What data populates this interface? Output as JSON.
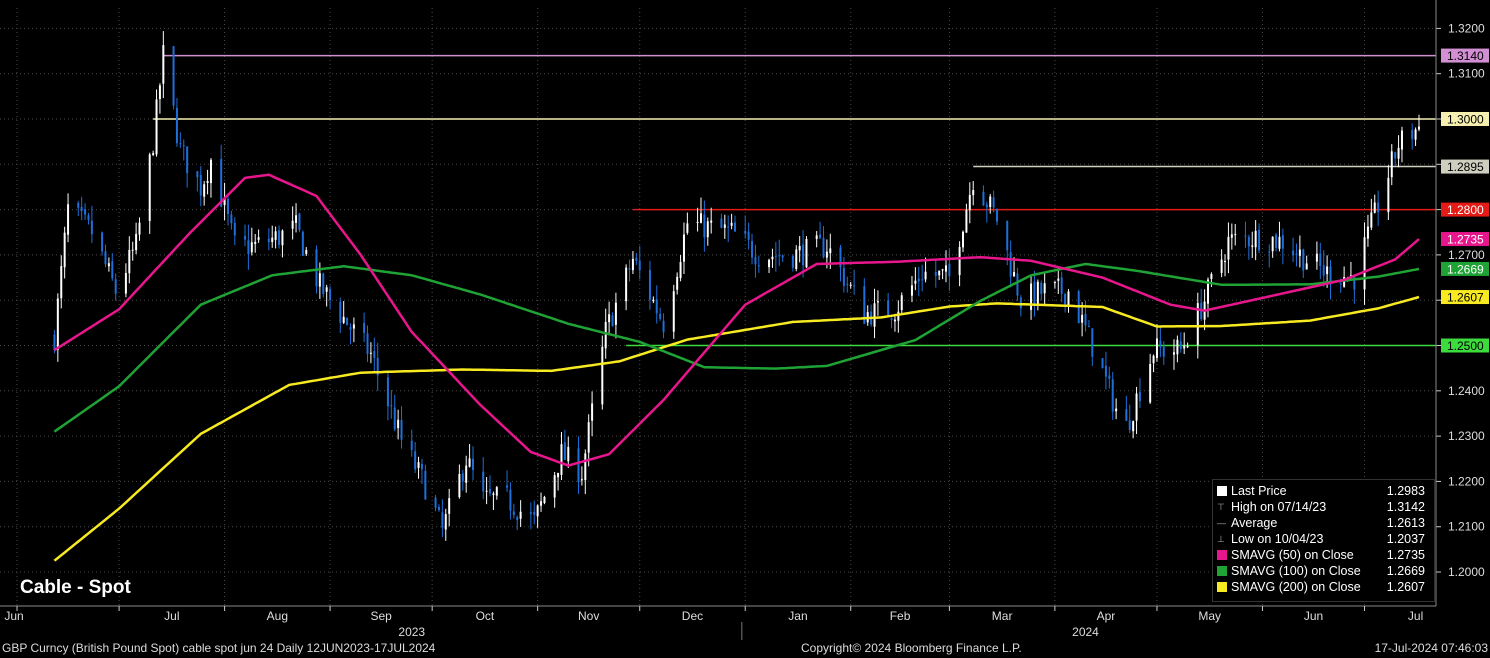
{
  "chart_data": {
    "type": "candlestick",
    "title": "Cable - Spot",
    "y_ticks": [
      "1.2000",
      "1.2100",
      "1.2200",
      "1.2300",
      "1.2400",
      "1.2500",
      "1.2600",
      "1.2700",
      "1.2800",
      "1.2900",
      "1.3000",
      "1.3100",
      "1.3200"
    ],
    "ylim": [
      1.1925,
      1.3245
    ],
    "x_month_labels": [
      {
        "label": "Jun",
        "date": "2023-06-01"
      },
      {
        "label": "Jul",
        "date": "2023-07-01"
      },
      {
        "label": "Aug",
        "date": "2023-08-01"
      },
      {
        "label": "Sep",
        "date": "2023-09-01"
      },
      {
        "label": "Oct",
        "date": "2023-10-01"
      },
      {
        "label": "Nov",
        "date": "2023-11-01"
      },
      {
        "label": "Dec",
        "date": "2023-12-01"
      },
      {
        "label": "Jan",
        "date": "2024-01-01"
      },
      {
        "label": "Feb",
        "date": "2024-02-01"
      },
      {
        "label": "Mar",
        "date": "2024-03-01"
      },
      {
        "label": "Apr",
        "date": "2024-04-01"
      },
      {
        "label": "May",
        "date": "2024-05-01"
      },
      {
        "label": "Jun",
        "date": "2024-06-01"
      },
      {
        "label": "Jul",
        "date": "2024-07-01"
      }
    ],
    "x_year_labels": [
      {
        "label": "2023",
        "date": "2023-09-25"
      },
      {
        "label": "2024",
        "date": "2024-04-10"
      }
    ],
    "x_range": [
      "2023-05-27",
      "2024-07-22"
    ],
    "year_divider_date": "2023-12-31",
    "price_anchors": [
      [
        "2023-06-12",
        1.252
      ],
      [
        "2023-06-16",
        1.28
      ],
      [
        "2023-06-23",
        1.275
      ],
      [
        "2023-06-30",
        1.262
      ],
      [
        "2023-07-06",
        1.272
      ],
      [
        "2023-07-11",
        1.295
      ],
      [
        "2023-07-14",
        1.314
      ],
      [
        "2023-07-19",
        1.293
      ],
      [
        "2023-07-25",
        1.285
      ],
      [
        "2023-07-28",
        1.291
      ],
      [
        "2023-08-04",
        1.272
      ],
      [
        "2023-08-10",
        1.272
      ],
      [
        "2023-08-17",
        1.274
      ],
      [
        "2023-08-22",
        1.276
      ],
      [
        "2023-08-29",
        1.263
      ],
      [
        "2023-09-05",
        1.256
      ],
      [
        "2023-09-13",
        1.248
      ],
      [
        "2023-09-22",
        1.229
      ],
      [
        "2023-09-29",
        1.219
      ],
      [
        "2023-10-04",
        1.209
      ],
      [
        "2023-10-11",
        1.225
      ],
      [
        "2023-10-16",
        1.216
      ],
      [
        "2023-10-23",
        1.216
      ],
      [
        "2023-10-31",
        1.211
      ],
      [
        "2023-11-08",
        1.226
      ],
      [
        "2023-11-14",
        1.222
      ],
      [
        "2023-11-21",
        1.253
      ],
      [
        "2023-11-29",
        1.269
      ],
      [
        "2023-12-08",
        1.255
      ],
      [
        "2023-12-15",
        1.277
      ],
      [
        "2023-12-28",
        1.275
      ],
      [
        "2024-01-05",
        1.27
      ],
      [
        "2024-01-15",
        1.27
      ],
      [
        "2024-01-25",
        1.272
      ],
      [
        "2024-02-05",
        1.257
      ],
      [
        "2024-02-14",
        1.258
      ],
      [
        "2024-02-22",
        1.266
      ],
      [
        "2024-03-01",
        1.265
      ],
      [
        "2024-03-08",
        1.287
      ],
      [
        "2024-03-15",
        1.278
      ],
      [
        "2024-03-22",
        1.26
      ],
      [
        "2024-03-29",
        1.262
      ],
      [
        "2024-04-05",
        1.262
      ],
      [
        "2024-04-12",
        1.25
      ],
      [
        "2024-04-19",
        1.236
      ],
      [
        "2024-04-22",
        1.232
      ],
      [
        "2024-04-30",
        1.249
      ],
      [
        "2024-05-08",
        1.249
      ],
      [
        "2024-05-15",
        1.26
      ],
      [
        "2024-05-22",
        1.273
      ],
      [
        "2024-05-31",
        1.274
      ],
      [
        "2024-06-07",
        1.273
      ],
      [
        "2024-06-14",
        1.269
      ],
      [
        "2024-06-20",
        1.266
      ],
      [
        "2024-06-28",
        1.265
      ],
      [
        "2024-07-05",
        1.281
      ],
      [
        "2024-07-11",
        1.2945
      ],
      [
        "2024-07-17",
        1.2983
      ]
    ],
    "sma50_anchors": [
      [
        "2023-06-12",
        1.249
      ],
      [
        "2023-07-01",
        1.258
      ],
      [
        "2023-07-22",
        1.275
      ],
      [
        "2023-08-07",
        1.287
      ],
      [
        "2023-08-14",
        1.2877
      ],
      [
        "2023-08-28",
        1.283
      ],
      [
        "2023-09-10",
        1.27
      ],
      [
        "2023-09-25",
        1.253
      ],
      [
        "2023-10-15",
        1.237
      ],
      [
        "2023-10-30",
        1.2265
      ],
      [
        "2023-11-10",
        1.2235
      ],
      [
        "2023-11-22",
        1.226
      ],
      [
        "2023-12-08",
        1.238
      ],
      [
        "2024-01-01",
        1.259
      ],
      [
        "2024-01-22",
        1.268
      ],
      [
        "2024-02-15",
        1.2685
      ],
      [
        "2024-03-10",
        1.2695
      ],
      [
        "2024-03-25",
        1.2687
      ],
      [
        "2024-04-15",
        1.265
      ],
      [
        "2024-05-05",
        1.259
      ],
      [
        "2024-05-15",
        1.2577
      ],
      [
        "2024-06-01",
        1.2605
      ],
      [
        "2024-06-25",
        1.2645
      ],
      [
        "2024-07-10",
        1.269
      ],
      [
        "2024-07-17",
        1.2735
      ]
    ],
    "sma100_anchors": [
      [
        "2023-06-12",
        1.231
      ],
      [
        "2023-07-01",
        1.241
      ],
      [
        "2023-07-25",
        1.259
      ],
      [
        "2023-08-15",
        1.2655
      ],
      [
        "2023-09-05",
        1.2675
      ],
      [
        "2023-09-25",
        1.2655
      ],
      [
        "2023-10-15",
        1.2613
      ],
      [
        "2023-11-10",
        1.2548
      ],
      [
        "2023-12-01",
        1.2508
      ],
      [
        "2023-12-20",
        1.2452
      ],
      [
        "2024-01-10",
        1.2449
      ],
      [
        "2024-01-25",
        1.2455
      ],
      [
        "2024-02-20",
        1.2512
      ],
      [
        "2024-03-10",
        1.2598
      ],
      [
        "2024-03-25",
        1.2655
      ],
      [
        "2024-04-10",
        1.268
      ],
      [
        "2024-04-25",
        1.2665
      ],
      [
        "2024-05-20",
        1.2634
      ],
      [
        "2024-06-15",
        1.2635
      ],
      [
        "2024-07-05",
        1.2652
      ],
      [
        "2024-07-17",
        1.2669
      ]
    ],
    "sma200_anchors": [
      [
        "2023-06-12",
        1.2025
      ],
      [
        "2023-07-01",
        1.214
      ],
      [
        "2023-07-25",
        1.2305
      ],
      [
        "2023-08-20",
        1.2413
      ],
      [
        "2023-09-10",
        1.244
      ],
      [
        "2023-10-10",
        1.2447
      ],
      [
        "2023-11-05",
        1.2444
      ],
      [
        "2023-11-25",
        1.2465
      ],
      [
        "2023-12-15",
        1.2513
      ],
      [
        "2024-01-15",
        1.2552
      ],
      [
        "2024-02-10",
        1.2562
      ],
      [
        "2024-03-01",
        1.2586
      ],
      [
        "2024-03-15",
        1.2593
      ],
      [
        "2024-04-15",
        1.2585
      ],
      [
        "2024-05-01",
        1.2542
      ],
      [
        "2024-05-20",
        1.2543
      ],
      [
        "2024-06-15",
        1.2555
      ],
      [
        "2024-07-05",
        1.2582
      ],
      [
        "2024-07-17",
        1.2607
      ]
    ],
    "horizontal_levels": [
      {
        "label": "1.3140",
        "value": 1.314,
        "color": "#d38fd3",
        "start": "2023-07-14",
        "tag_bg": "#d38fd3",
        "tag_fg": "#000"
      },
      {
        "label": "1.3000",
        "value": 1.3,
        "color": "#f5f0b0",
        "start": "2023-07-11",
        "tag_bg": "#f5f0b0",
        "tag_fg": "#000"
      },
      {
        "label": "1.2895",
        "value": 1.2895,
        "color": "#cfcfc0",
        "start": "2024-03-08",
        "tag_bg": "#cfcfc0",
        "tag_fg": "#000"
      },
      {
        "label": "1.2800",
        "value": 1.28,
        "color": "#e41b17",
        "start": "2023-11-29",
        "tag_bg": "#e41b17",
        "tag_fg": "#fff"
      },
      {
        "label": "1.2500",
        "value": 1.25,
        "color": "#3ddc3d",
        "start": "2023-11-27",
        "tag_bg": "#3ddc3d",
        "tag_fg": "#000"
      }
    ],
    "ma_tags": [
      {
        "label": "1.2735",
        "value": 1.2735,
        "bg": "#e8168c",
        "fg": "#fff"
      },
      {
        "label": "1.2669",
        "value": 1.2669,
        "bg": "#1fa335",
        "fg": "#fff"
      },
      {
        "label": "1.2607",
        "value": 1.2607,
        "bg": "#f7ea20",
        "fg": "#000"
      }
    ],
    "series_colors": {
      "up": "#ffffff",
      "down": "#1e6fd9",
      "sma50": "#e8168c",
      "sma100": "#1fa335",
      "sma200": "#f7ea20"
    }
  },
  "legend": [
    {
      "icon": "square",
      "color": "#ffffff",
      "label": "Last Price",
      "value": "1.2983"
    },
    {
      "icon": "high",
      "color": "#aaaaaa",
      "label": "High on 07/14/23",
      "value": "1.3142"
    },
    {
      "icon": "avg",
      "color": "#aaaaaa",
      "label": "Average",
      "value": "1.2613"
    },
    {
      "icon": "low",
      "color": "#aaaaaa",
      "label": "Low on 10/04/23",
      "value": "1.2037"
    },
    {
      "icon": "square",
      "color": "#e8168c",
      "label": "SMAVG (50)  on Close",
      "value": "1.2735"
    },
    {
      "icon": "square",
      "color": "#1fa335",
      "label": "SMAVG (100)  on Close",
      "value": "1.2669"
    },
    {
      "icon": "square",
      "color": "#f7ea20",
      "label": "SMAVG (200)  on Close",
      "value": "1.2607"
    }
  ],
  "footer": {
    "left": "GBP Curncy (British Pound Spot) cable spot jun 24  Daily 12JUN2023-17JUL2024",
    "center": "Copyright© 2024 Bloomberg Finance L.P.",
    "right": "17-Jul-2024 07:46:03"
  }
}
